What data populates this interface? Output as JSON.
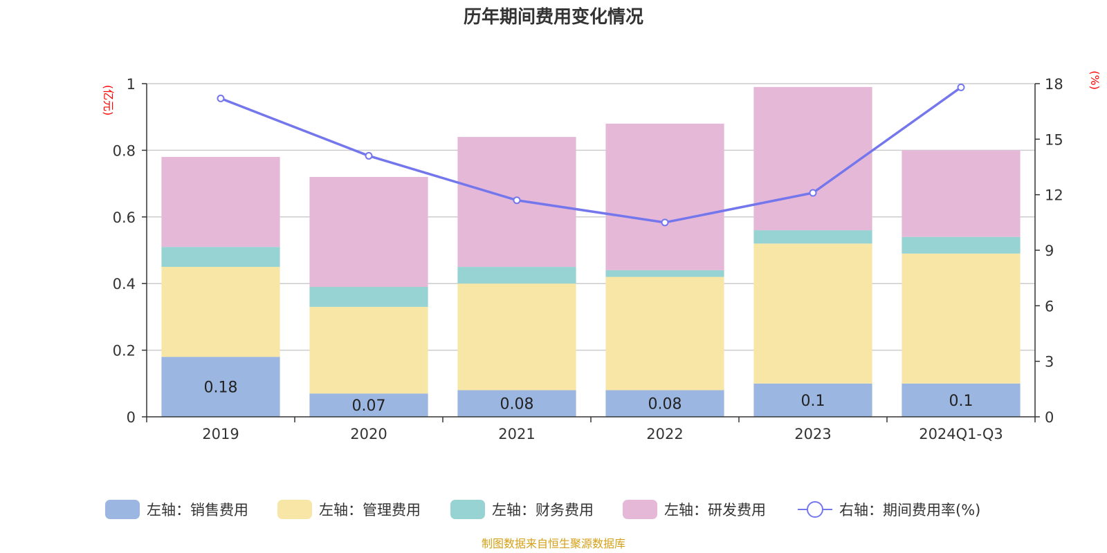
{
  "chart_data": {
    "type": "bar",
    "stacked": true,
    "title": "历年期间费用变化情况",
    "categories": [
      "2019",
      "2020",
      "2021",
      "2022",
      "2023",
      "2024Q1-Q3"
    ],
    "left_axis": {
      "unit": "(亿元)",
      "ylim": [
        0,
        1
      ],
      "ticks": [
        "0",
        "0.2",
        "0.4",
        "0.6",
        "0.8",
        "1"
      ],
      "tick_values": [
        0,
        0.2,
        0.4,
        0.6,
        0.8,
        1
      ]
    },
    "right_axis": {
      "unit": "(%)",
      "ylim": [
        0,
        18
      ],
      "ticks": [
        "0",
        "3",
        "6",
        "9",
        "12",
        "15",
        "18"
      ],
      "tick_values": [
        0,
        3,
        6,
        9,
        12,
        15,
        18
      ]
    },
    "series": [
      {
        "name": "左轴：销售费用",
        "axis": "left",
        "type": "bar",
        "color": "#9bb6e0",
        "values": [
          0.18,
          0.07,
          0.08,
          0.08,
          0.1,
          0.1
        ],
        "labels": [
          "0.18",
          "0.07",
          "0.08",
          "0.08",
          "0.1",
          "0.1"
        ]
      },
      {
        "name": "左轴：管理费用",
        "axis": "left",
        "type": "bar",
        "color": "#f7e6a6",
        "values": [
          0.27,
          0.26,
          0.32,
          0.34,
          0.42,
          0.39
        ]
      },
      {
        "name": "左轴：财务费用",
        "axis": "left",
        "type": "bar",
        "color": "#97d3d3",
        "values": [
          0.06,
          0.06,
          0.05,
          0.02,
          0.04,
          0.05
        ]
      },
      {
        "name": "左轴：研发费用",
        "axis": "left",
        "type": "bar",
        "color": "#e6b8d8",
        "values": [
          0.27,
          0.33,
          0.39,
          0.44,
          0.43,
          0.26
        ]
      },
      {
        "name": "右轴：期间费用率(%)",
        "axis": "right",
        "type": "line",
        "color": "#7477ec",
        "values": [
          17.2,
          14.1,
          11.7,
          10.5,
          12.1,
          17.8
        ]
      }
    ],
    "legend_position": "bottom",
    "grid": true
  },
  "source_text": "制图数据来自恒生聚源数据库",
  "source_color": "#d4a017"
}
